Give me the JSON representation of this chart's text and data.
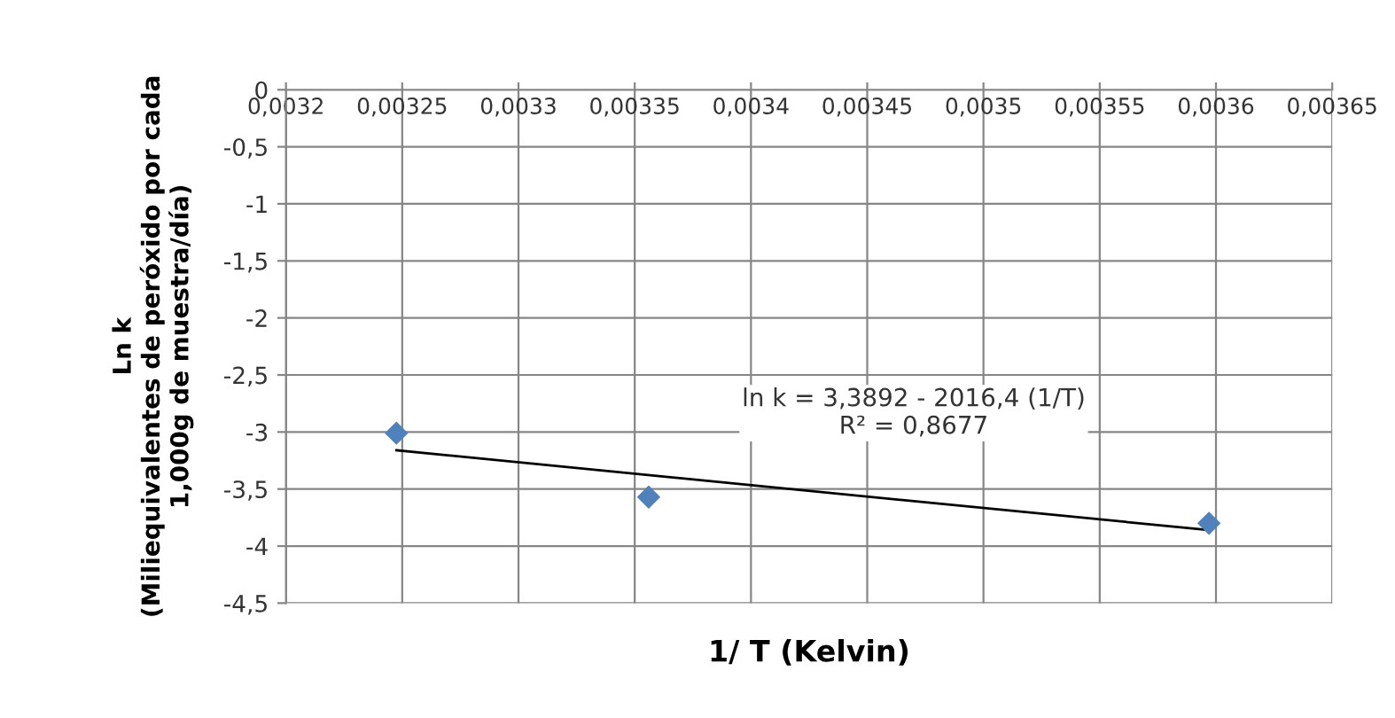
{
  "chart_data": {
    "type": "scatter",
    "xlabel": "1/ T (Kelvin)",
    "ylabel": "Ln k\n(Miliequivalentes de peróxido por cada\n1,000g de muestra/día)",
    "series": [
      {
        "color": "#4f81bd",
        "marker": "diamond",
        "x": [
          0.0032475,
          0.003356,
          0.003597
        ],
        "values": [
          -3.01,
          -3.57,
          -3.8
        ]
      },
      {
        "type": "line",
        "color": "#000000",
        "marker": "none",
        "line_style": "solid",
        "x": [
          0.0032475,
          0.003597
        ],
        "values": [
          -3.16,
          -3.86
        ]
      }
    ],
    "annotations": [
      "ln k = 3,3892 - 2016,4 (1/T)\nR² = 0,8677"
    ],
    "xlim": [
      0.0032,
      0.00365
    ],
    "xticks": [
      {
        "value": 0.0032,
        "label": "0,0032"
      },
      {
        "value": 0.00325,
        "label": "0,00325"
      },
      {
        "value": 0.0033,
        "label": "0,0033"
      },
      {
        "value": 0.00335,
        "label": "0,00335"
      },
      {
        "value": 0.0034,
        "label": "0,0034"
      },
      {
        "value": 0.00345,
        "label": "0,00345"
      },
      {
        "value": 0.0035,
        "label": "0,0035"
      },
      {
        "value": 0.00355,
        "label": "0,00355"
      },
      {
        "value": 0.0036,
        "label": "0,0036"
      },
      {
        "value": 0.00365,
        "label": "0,00365"
      }
    ],
    "ylim": [
      -4.5,
      0
    ],
    "yticks": [
      0,
      {
        "value": -0.5,
        "label": "-0,5"
      },
      -1,
      {
        "value": -1.5,
        "label": "-1,5"
      },
      -2,
      {
        "value": -2.5,
        "label": "-2,5"
      },
      -3,
      {
        "value": -3.5,
        "label": "-3,5"
      },
      -4,
      {
        "value": -4.5,
        "label": "-4,5"
      }
    ],
    "grid": true,
    "legend": false
  }
}
